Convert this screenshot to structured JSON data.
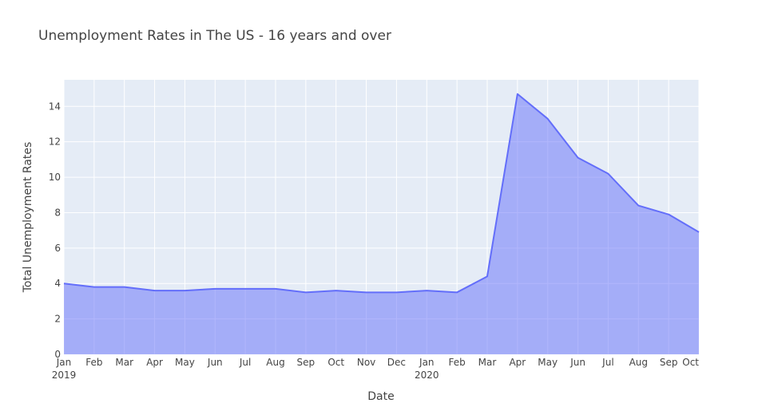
{
  "chart_data": {
    "type": "area",
    "title": "Unemployment Rates in The US - 16 years and over",
    "xlabel": "Date",
    "ylabel": "Total Unemployment Rates",
    "x": [
      "2019-01",
      "2019-02",
      "2019-03",
      "2019-04",
      "2019-05",
      "2019-06",
      "2019-07",
      "2019-08",
      "2019-09",
      "2019-10",
      "2019-11",
      "2019-12",
      "2020-01",
      "2020-02",
      "2020-03",
      "2020-04",
      "2020-05",
      "2020-06",
      "2020-07",
      "2020-08",
      "2020-09",
      "2020-10"
    ],
    "x_tick_labels": [
      "Jan",
      "Feb",
      "Mar",
      "Apr",
      "May",
      "Jun",
      "Jul",
      "Aug",
      "Sep",
      "Oct",
      "Nov",
      "Dec",
      "Jan",
      "Feb",
      "Mar",
      "Apr",
      "May",
      "Jun",
      "Jul",
      "Aug",
      "Sep",
      "Oct"
    ],
    "x_year_labels": [
      {
        "month": "2019-01",
        "label": "2019"
      },
      {
        "month": "2020-01",
        "label": "2020"
      }
    ],
    "series": [
      {
        "values": [
          4.0,
          3.8,
          3.8,
          3.6,
          3.6,
          3.7,
          3.7,
          3.7,
          3.5,
          3.6,
          3.5,
          3.5,
          3.6,
          3.5,
          4.4,
          14.7,
          13.3,
          11.1,
          10.2,
          8.4,
          7.9,
          6.9
        ]
      }
    ],
    "y_ticks": [
      0,
      2,
      4,
      6,
      8,
      10,
      12,
      14
    ],
    "ylim": [
      0,
      15.5
    ],
    "grid": true,
    "colors": {
      "line": "#636efa",
      "fill": "rgba(99,110,250,0.5)",
      "plot_bg": "#e5ecf6",
      "grid": "#ffffff"
    }
  }
}
